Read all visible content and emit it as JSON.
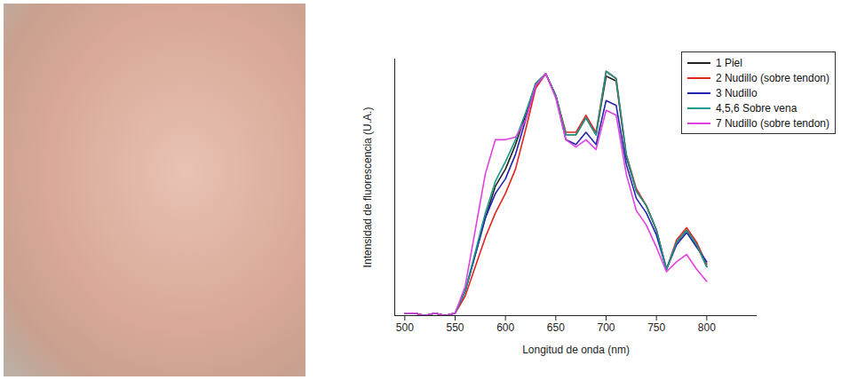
{
  "chart_data": {
    "type": "line",
    "xlabel": "Longitud de onda (nm)",
    "ylabel": "Intensidad de fluorescencia (U.A.)",
    "x": [
      500,
      510,
      520,
      530,
      540,
      550,
      560,
      570,
      580,
      590,
      600,
      610,
      620,
      630,
      640,
      650,
      660,
      670,
      680,
      690,
      700,
      710,
      720,
      730,
      740,
      750,
      760,
      770,
      780,
      790,
      800
    ],
    "series": [
      {
        "name": "1 Piel",
        "color": "#222222",
        "values": [
          0.01,
          0.01,
          0.0,
          0.01,
          0.0,
          0.01,
          0.1,
          0.25,
          0.4,
          0.53,
          0.6,
          0.7,
          0.82,
          0.95,
          0.99,
          0.9,
          0.74,
          0.74,
          0.81,
          0.74,
          0.98,
          0.96,
          0.65,
          0.51,
          0.45,
          0.35,
          0.19,
          0.3,
          0.35,
          0.29,
          0.2
        ]
      },
      {
        "name": "2 Nudillo (sobre tendon)",
        "color": "#e3261f",
        "values": [
          0.01,
          0.01,
          0.0,
          0.01,
          0.0,
          0.01,
          0.08,
          0.2,
          0.32,
          0.42,
          0.5,
          0.6,
          0.76,
          0.93,
          0.99,
          0.9,
          0.75,
          0.75,
          0.82,
          0.75,
          1.0,
          0.97,
          0.66,
          0.52,
          0.45,
          0.35,
          0.19,
          0.31,
          0.36,
          0.3,
          0.21
        ]
      },
      {
        "name": "3 Nudillo",
        "color": "#2323b0",
        "values": [
          0.01,
          0.01,
          0.0,
          0.01,
          0.0,
          0.01,
          0.1,
          0.25,
          0.4,
          0.5,
          0.56,
          0.66,
          0.8,
          0.94,
          0.99,
          0.9,
          0.72,
          0.7,
          0.75,
          0.7,
          0.88,
          0.86,
          0.62,
          0.48,
          0.42,
          0.33,
          0.19,
          0.29,
          0.34,
          0.28,
          0.22
        ]
      },
      {
        "name": "4,5,6 Sobre vena",
        "color": "#1a9a8a",
        "values": [
          0.01,
          0.01,
          0.0,
          0.01,
          0.0,
          0.01,
          0.1,
          0.26,
          0.42,
          0.55,
          0.63,
          0.72,
          0.83,
          0.95,
          0.99,
          0.9,
          0.74,
          0.74,
          0.81,
          0.74,
          1.0,
          0.97,
          0.66,
          0.51,
          0.45,
          0.35,
          0.19,
          0.3,
          0.35,
          0.29,
          0.2
        ]
      },
      {
        "name": "7 Nudillo (sobre tendon)",
        "color": "#e040e0",
        "values": [
          0.01,
          0.01,
          0.0,
          0.01,
          0.0,
          0.01,
          0.12,
          0.35,
          0.58,
          0.72,
          0.72,
          0.73,
          0.8,
          0.94,
          0.99,
          0.89,
          0.72,
          0.69,
          0.72,
          0.68,
          0.84,
          0.82,
          0.58,
          0.43,
          0.37,
          0.28,
          0.18,
          0.22,
          0.25,
          0.19,
          0.14
        ]
      }
    ],
    "xlim": [
      490,
      850
    ],
    "xticks": [
      500,
      550,
      600,
      650,
      700,
      750,
      800
    ],
    "ylim": [
      0,
      1.05
    ],
    "tick_labels": "x",
    "legend": "top-right",
    "grid": false
  }
}
